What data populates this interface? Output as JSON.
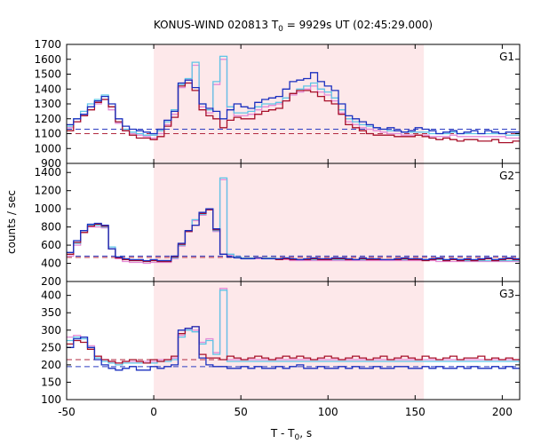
{
  "chart_data": {
    "type": "line",
    "title_main": "KONUS-WIND 020813 T",
    "title_sub": "0",
    "title_rest": " = 9929s UT (02:45:29.000)",
    "xlabel_main": "T - T",
    "xlabel_sub": "0",
    "xlabel_rest": ", s",
    "ylabel": "counts / sec",
    "xlim": [
      -50,
      210
    ],
    "xticks": [
      -50,
      0,
      50,
      100,
      150,
      200
    ],
    "highlight_range": [
      0,
      155
    ],
    "colors": {
      "highlight": "#fde8ea",
      "blue": "#1a2fbf",
      "red": "#a8102a",
      "cyan": "#5ec4e6",
      "pink": "#e48ad6",
      "bg_blue": "#2e3ec2",
      "bg_red": "#b22a40"
    },
    "panels": [
      {
        "label": "G1",
        "ylim": [
          900,
          1700
        ],
        "yticks": [
          900,
          1000,
          1100,
          1200,
          1300,
          1400,
          1500,
          1600,
          1700
        ],
        "background_blue": 1130,
        "background_red": 1100,
        "series": [
          {
            "name": "blue",
            "step": 4,
            "x0": -50,
            "values": [
              1160,
              1200,
              1230,
              1280,
              1320,
              1350,
              1300,
              1200,
              1150,
              1130,
              1120,
              1110,
              1100,
              1130,
              1190,
              1250,
              1440,
              1460,
              1410,
              1300,
              1270,
              1250,
              1200,
              1260,
              1300,
              1280,
              1270,
              1310,
              1330,
              1340,
              1350,
              1400,
              1450,
              1460,
              1470,
              1510,
              1450,
              1420,
              1390,
              1300,
              1220,
              1200,
              1180,
              1160,
              1140,
              1130,
              1140,
              1120,
              1110,
              1120,
              1140,
              1130,
              1120,
              1100,
              1110,
              1120,
              1100,
              1110,
              1120,
              1100,
              1120,
              1110,
              1100,
              1110,
              1110
            ]
          },
          {
            "name": "red",
            "step": 4,
            "x0": -50,
            "values": [
              1120,
              1180,
              1220,
              1260,
              1310,
              1330,
              1280,
              1180,
              1120,
              1090,
              1070,
              1070,
              1060,
              1080,
              1150,
              1210,
              1420,
              1440,
              1390,
              1260,
              1220,
              1200,
              1140,
              1190,
              1210,
              1200,
              1200,
              1230,
              1250,
              1260,
              1270,
              1320,
              1370,
              1390,
              1390,
              1380,
              1350,
              1320,
              1300,
              1230,
              1160,
              1140,
              1120,
              1100,
              1090,
              1090,
              1090,
              1080,
              1080,
              1080,
              1090,
              1080,
              1070,
              1060,
              1070,
              1060,
              1050,
              1060,
              1060,
              1050,
              1050,
              1060,
              1040,
              1040,
              1050
            ]
          },
          {
            "name": "cyan",
            "step": 4,
            "x0": -50,
            "values": [
              1150,
              1200,
              1250,
              1300,
              1330,
              1360,
              1280,
              1180,
              1130,
              1110,
              1100,
              1090,
              1090,
              1120,
              1180,
              1260,
              1430,
              1470,
              1580,
              1300,
              1260,
              1450,
              1620,
              1280,
              1240,
              1240,
              1250,
              1280,
              1300,
              1300,
              1310,
              1340,
              1370,
              1400,
              1420,
              1440,
              1400,
              1380,
              1340,
              1260,
              1200,
              1180,
              1160,
              1150,
              1140,
              1130,
              1120,
              1120,
              1110,
              1110,
              1110,
              1110,
              1100,
              1100,
              1100,
              1110,
              1100,
              1100,
              1100,
              1100,
              1100,
              1100,
              1100,
              1090,
              1090
            ]
          },
          {
            "name": "pink",
            "step": 4,
            "x0": -50,
            "values": [
              1140,
              1180,
              1230,
              1280,
              1300,
              1330,
              1260,
              1170,
              1120,
              1100,
              1090,
              1080,
              1070,
              1100,
              1160,
              1230,
              1410,
              1440,
              1560,
              1280,
              1240,
              1430,
              1600,
              1260,
              1220,
              1220,
              1230,
              1260,
              1280,
              1290,
              1300,
              1320,
              1360,
              1380,
              1400,
              1420,
              1380,
              1360,
              1320,
              1240,
              1180,
              1160,
              1140,
              1130,
              1120,
              1110,
              1100,
              1100,
              1090,
              1090,
              1090,
              1090,
              1080,
              1080,
              1080,
              1090,
              1080,
              1080,
              1080,
              1080,
              1080,
              1080,
              1080,
              1070,
              1070
            ]
          }
        ]
      },
      {
        "label": "G2",
        "ylim": [
          200,
          1500
        ],
        "yticks": [
          200,
          400,
          600,
          800,
          1000,
          1200,
          1400
        ],
        "background_blue": 480,
        "background_red": 465,
        "series": [
          {
            "name": "blue",
            "step": 4,
            "x0": -50,
            "values": [
              520,
              650,
              760,
              830,
              840,
              820,
              560,
              470,
              450,
              440,
              440,
              430,
              440,
              430,
              430,
              480,
              620,
              760,
              820,
              960,
              1000,
              780,
              500,
              470,
              460,
              450,
              450,
              460,
              450,
              450,
              450,
              460,
              450,
              440,
              450,
              460,
              450,
              450,
              460,
              460,
              450,
              440,
              460,
              450,
              450,
              440,
              440,
              450,
              460,
              450,
              450,
              440,
              450,
              460,
              440,
              450,
              440,
              450,
              440,
              450,
              460,
              440,
              450,
              460,
              450
            ]
          },
          {
            "name": "red",
            "step": 4,
            "x0": -50,
            "values": [
              500,
              630,
              740,
              810,
              830,
              810,
              560,
              460,
              440,
              430,
              430,
              420,
              430,
              420,
              420,
              470,
              610,
              750,
              820,
              950,
              990,
              770,
              500,
              470,
              460,
              450,
              450,
              460,
              450,
              450,
              440,
              450,
              440,
              440,
              440,
              450,
              440,
              440,
              450,
              450,
              440,
              440,
              450,
              440,
              440,
              440,
              440,
              440,
              450,
              440,
              440,
              430,
              440,
              450,
              430,
              440,
              430,
              440,
              430,
              440,
              450,
              430,
              440,
              450,
              440
            ]
          },
          {
            "name": "cyan",
            "step": 4,
            "x0": -50,
            "values": [
              500,
              620,
              760,
              820,
              820,
              800,
              580,
              470,
              440,
              430,
              430,
              420,
              430,
              430,
              430,
              460,
              600,
              760,
              880,
              940,
              1000,
              760,
              1340,
              500,
              470,
              460,
              460,
              460,
              460,
              460,
              450,
              450,
              440,
              440,
              440,
              440,
              440,
              440,
              440,
              440,
              440,
              440,
              440,
              440,
              440,
              440,
              440,
              440,
              440,
              440,
              440,
              440,
              440,
              440,
              440,
              440,
              440,
              430,
              430,
              430,
              430,
              430,
              430,
              430,
              430
            ]
          },
          {
            "name": "pink",
            "step": 4,
            "x0": -50,
            "values": [
              480,
              600,
              740,
              800,
              800,
              790,
              560,
              450,
              420,
              410,
              410,
              400,
              410,
              410,
              410,
              450,
              590,
              750,
              870,
              930,
              990,
              750,
              1320,
              490,
              460,
              450,
              450,
              450,
              450,
              450,
              440,
              440,
              430,
              430,
              430,
              430,
              430,
              430,
              430,
              430,
              430,
              430,
              430,
              430,
              430,
              430,
              430,
              430,
              430,
              430,
              430,
              430,
              430,
              420,
              420,
              420,
              420,
              420,
              420,
              420,
              420,
              420,
              420,
              420,
              420
            ]
          }
        ]
      },
      {
        "label": "G3",
        "ylim": [
          100,
          440
        ],
        "yticks": [
          100,
          150,
          200,
          250,
          300,
          350,
          400
        ],
        "background_blue": 195,
        "background_red": 215,
        "series": [
          {
            "name": "blue",
            "step": 4,
            "x0": -50,
            "values": [
              250,
              275,
              280,
              250,
              215,
              200,
              190,
              185,
              190,
              195,
              185,
              185,
              195,
              190,
              195,
              200,
              300,
              305,
              310,
              220,
              200,
              195,
              195,
              190,
              190,
              195,
              190,
              195,
              190,
              190,
              195,
              190,
              195,
              200,
              190,
              190,
              195,
              190,
              190,
              195,
              190,
              195,
              190,
              190,
              195,
              190,
              190,
              195,
              195,
              190,
              190,
              195,
              190,
              195,
              190,
              190,
              195,
              190,
              195,
              190,
              190,
              195,
              190,
              195,
              190
            ]
          },
          {
            "name": "red",
            "step": 4,
            "x0": -50,
            "values": [
              260,
              270,
              265,
              245,
              225,
              215,
              210,
              205,
              210,
              215,
              210,
              205,
              215,
              210,
              215,
              225,
              290,
              305,
              310,
              230,
              220,
              220,
              215,
              225,
              220,
              215,
              220,
              225,
              220,
              215,
              220,
              225,
              220,
              225,
              220,
              215,
              220,
              225,
              220,
              215,
              220,
              225,
              220,
              215,
              220,
              225,
              215,
              220,
              225,
              220,
              215,
              225,
              220,
              215,
              220,
              225,
              215,
              220,
              220,
              225,
              215,
              220,
              215,
              220,
              215
            ]
          },
          {
            "name": "cyan",
            "step": 4,
            "x0": -50,
            "values": [
              270,
              280,
              275,
              250,
              220,
              210,
              205,
              200,
              205,
              205,
              205,
              205,
              205,
              210,
              210,
              215,
              280,
              300,
              295,
              260,
              270,
              230,
              415,
              210,
              210,
              210,
              210,
              210,
              210,
              210,
              210,
              210,
              210,
              210,
              210,
              210,
              210,
              210,
              210,
              210,
              210,
              210,
              210,
              210,
              210,
              210,
              210,
              210,
              210,
              210,
              210,
              210,
              210,
              210,
              210,
              210,
              210,
              210,
              210,
              210,
              210,
              210,
              210,
              210,
              210
            ]
          },
          {
            "name": "pink",
            "step": 4,
            "x0": -50,
            "values": [
              280,
              285,
              280,
              255,
              225,
              215,
              210,
              205,
              210,
              210,
              210,
              210,
              210,
              215,
              215,
              220,
              285,
              305,
              300,
              265,
              275,
              235,
              420,
              215,
              215,
              215,
              215,
              215,
              215,
              215,
              215,
              215,
              215,
              215,
              215,
              215,
              215,
              215,
              215,
              215,
              215,
              215,
              215,
              215,
              215,
              215,
              215,
              215,
              215,
              215,
              215,
              215,
              215,
              215,
              215,
              215,
              215,
              215,
              215,
              215,
              215,
              215,
              215,
              215,
              215
            ]
          }
        ]
      }
    ]
  }
}
